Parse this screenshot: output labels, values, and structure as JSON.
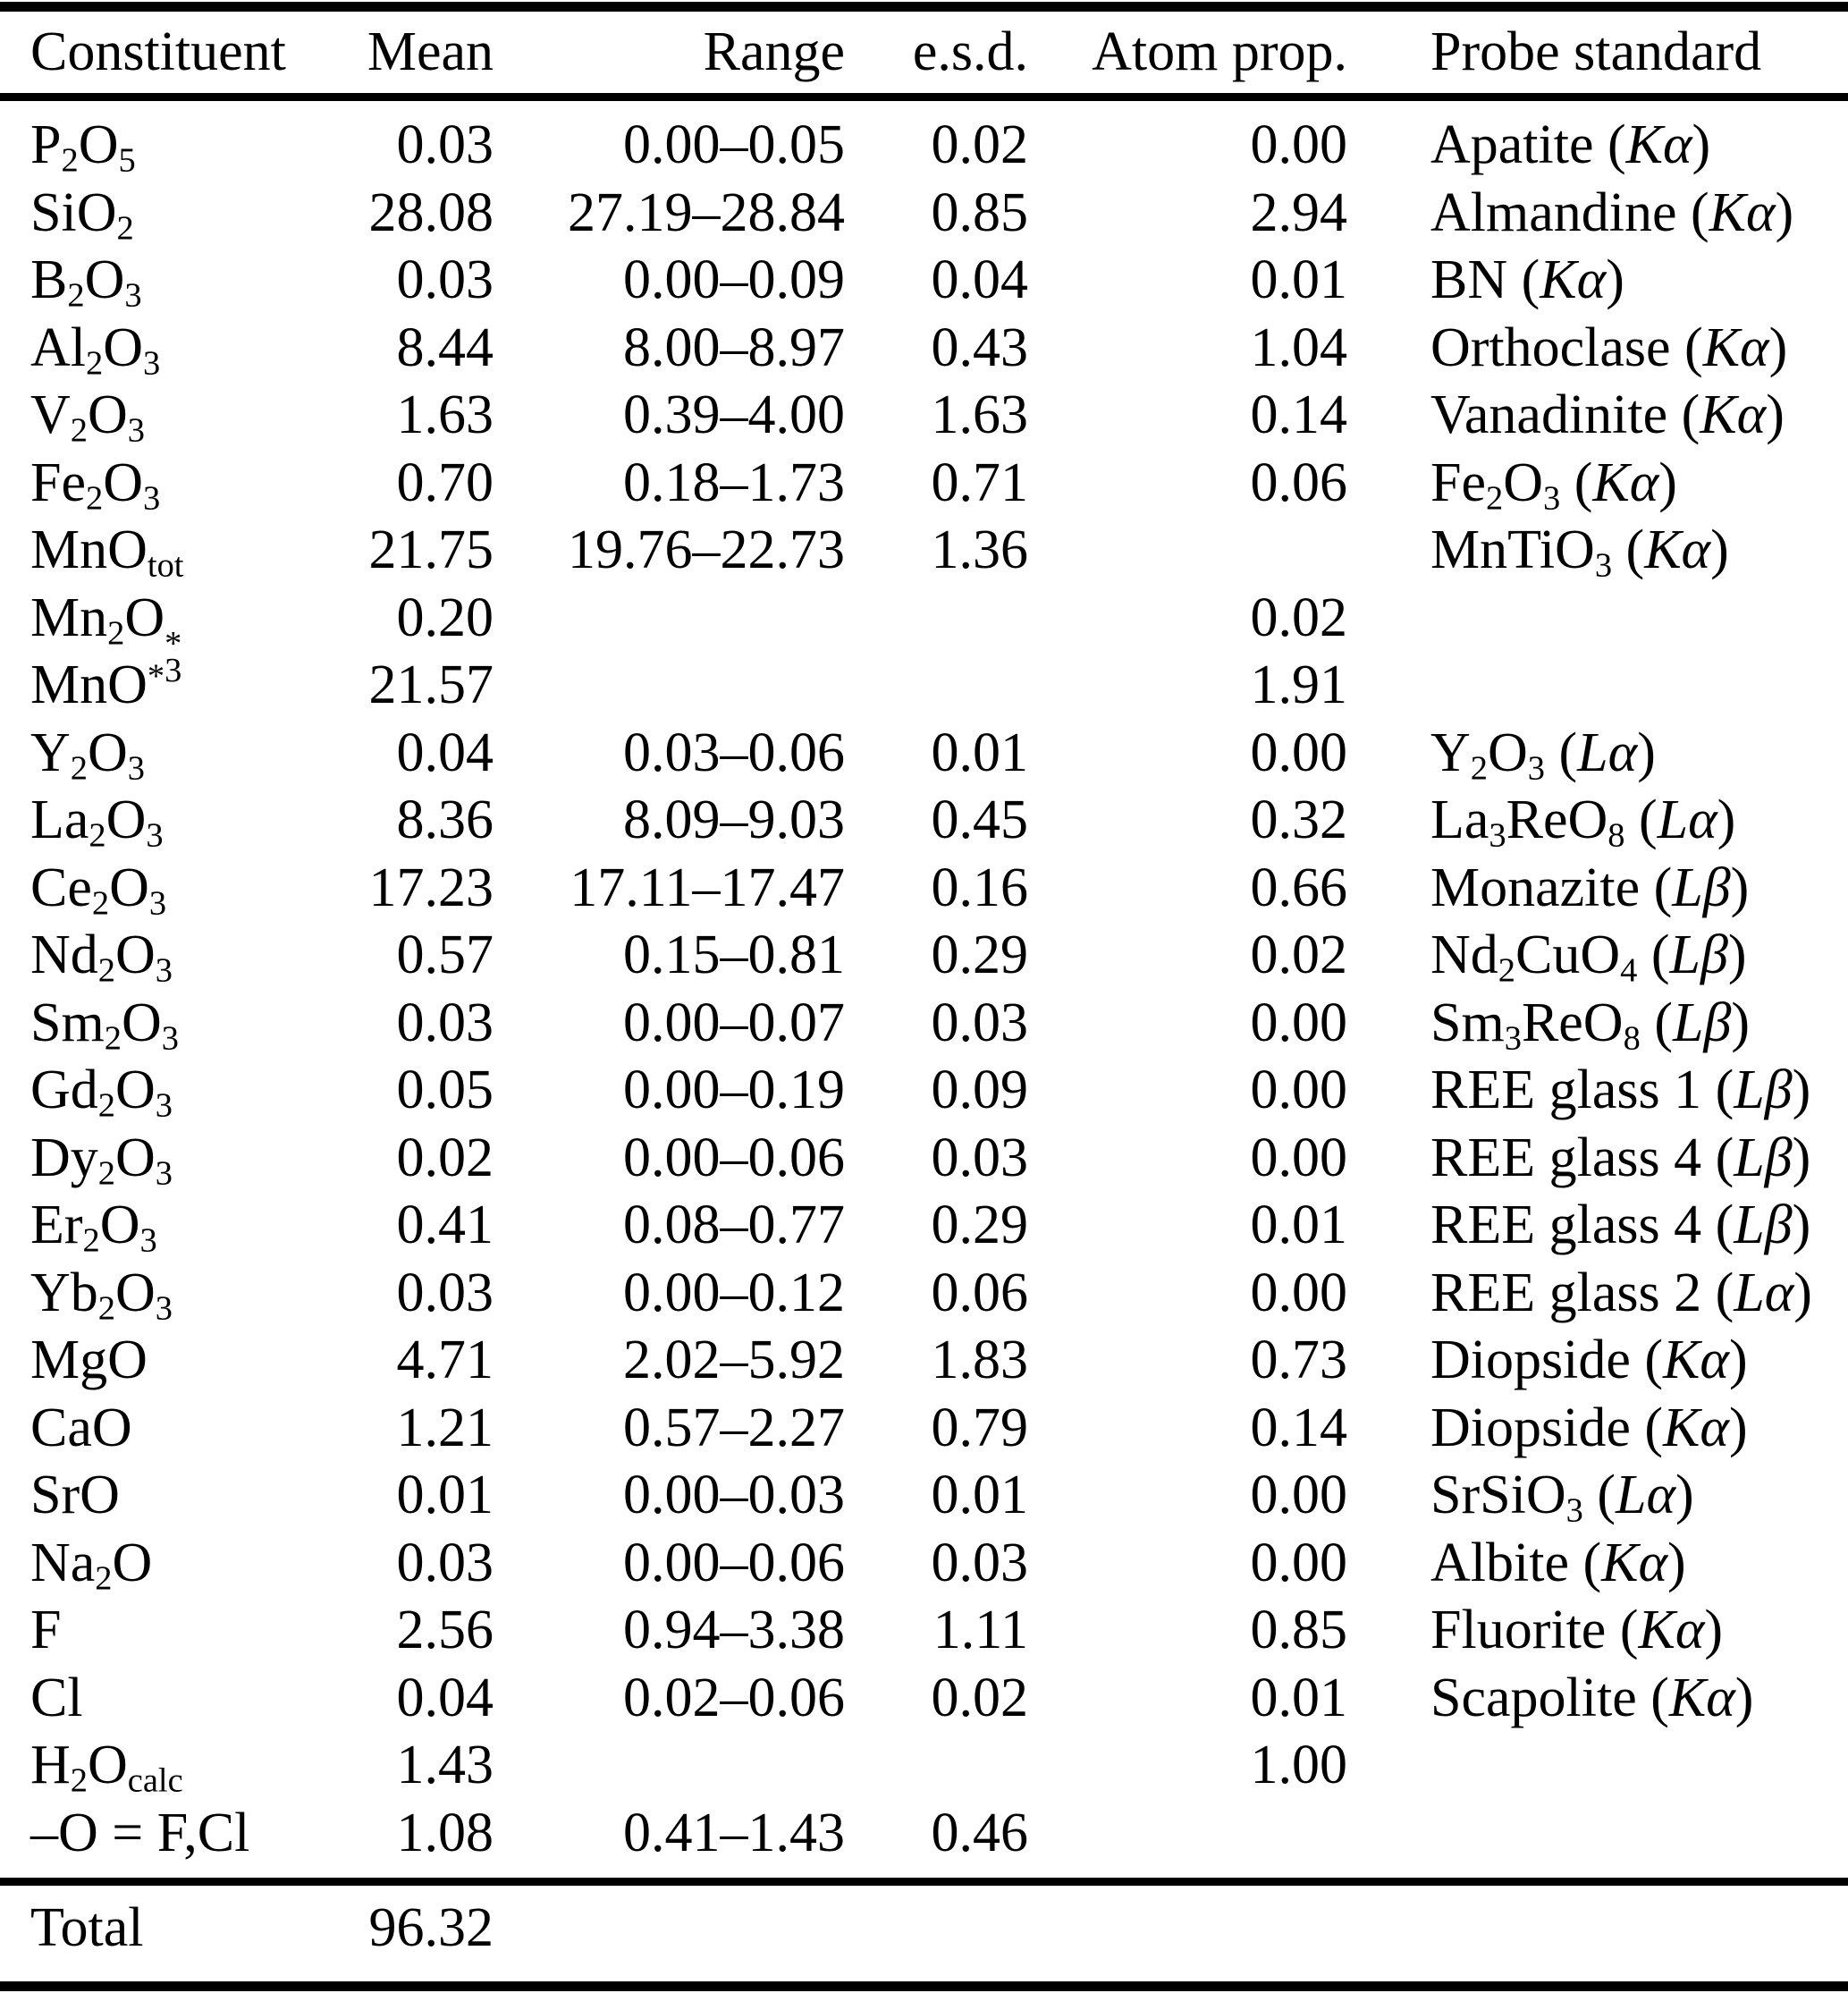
{
  "colors": {
    "background": "#ffffff",
    "text": "#000000",
    "rule": "#000000"
  },
  "table": {
    "columns": [
      "Constituent",
      "Mean",
      "Range",
      "e.s.d.",
      "Atom prop.",
      "Probe standard"
    ],
    "rows": [
      {
        "constituent": "P_{2}O_{5}",
        "mean": "0.03",
        "range": "0.00–0.05",
        "esd": "0.02",
        "atom_prop": "0.00",
        "probe_standard": "Apatite (~Kα~)"
      },
      {
        "constituent": "SiO_{2}",
        "mean": "28.08",
        "range": "27.19–28.84",
        "esd": "0.85",
        "atom_prop": "2.94",
        "probe_standard": "Almandine (~Kα~)"
      },
      {
        "constituent": "B_{2}O_{3}",
        "mean": "0.03",
        "range": "0.00–0.09",
        "esd": "0.04",
        "atom_prop": "0.01",
        "probe_standard": "BN (~Kα~)"
      },
      {
        "constituent": "Al_{2}O_{3}",
        "mean": "8.44",
        "range": "8.00–8.97",
        "esd": "0.43",
        "atom_prop": "1.04",
        "probe_standard": "Orthoclase (~Kα~)"
      },
      {
        "constituent": "V_{2}O_{3}",
        "mean": "1.63",
        "range": "0.39–4.00",
        "esd": "1.63",
        "atom_prop": "0.14",
        "probe_standard": "Vanadinite (~Kα~)"
      },
      {
        "constituent": "Fe_{2}O_{3}",
        "mean": "0.70",
        "range": "0.18–1.73",
        "esd": "0.71",
        "atom_prop": "0.06",
        "probe_standard": "Fe_{2}O_{3} (~Kα~)"
      },
      {
        "constituent": "MnO_{tot}",
        "mean": "21.75",
        "range": "19.76–22.73",
        "esd": "1.36",
        "atom_prop": "",
        "probe_standard": "MnTiO_{3} (~Kα~)"
      },
      {
        "constituent": "Mn_{2}O%{*|3}",
        "mean": "0.20",
        "range": "",
        "esd": "",
        "atom_prop": "0.02",
        "probe_standard": ""
      },
      {
        "constituent": "MnO^{*}",
        "mean": "21.57",
        "range": "",
        "esd": "",
        "atom_prop": "1.91",
        "probe_standard": ""
      },
      {
        "constituent": "Y_{2}O_{3}",
        "mean": "0.04",
        "range": "0.03–0.06",
        "esd": "0.01",
        "atom_prop": "0.00",
        "probe_standard": "Y_{2}O_{3} (~Lα~)"
      },
      {
        "constituent": "La_{2}O_{3}",
        "mean": "8.36",
        "range": "8.09–9.03",
        "esd": "0.45",
        "atom_prop": "0.32",
        "probe_standard": "La_{3}ReO_{8} (~Lα~)"
      },
      {
        "constituent": "Ce_{2}O_{3}",
        "mean": "17.23",
        "range": "17.11–17.47",
        "esd": "0.16",
        "atom_prop": "0.66",
        "probe_standard": "Monazite (~Lβ~)"
      },
      {
        "constituent": "Nd_{2}O_{3}",
        "mean": "0.57",
        "range": "0.15–0.81",
        "esd": "0.29",
        "atom_prop": "0.02",
        "probe_standard": "Nd_{2}CuO_{4} (~Lβ~)"
      },
      {
        "constituent": "Sm_{2}O_{3}",
        "mean": "0.03",
        "range": "0.00–0.07",
        "esd": "0.03",
        "atom_prop": "0.00",
        "probe_standard": "Sm_{3}ReO_{8} (~Lβ~)"
      },
      {
        "constituent": "Gd_{2}O_{3}",
        "mean": "0.05",
        "range": "0.00–0.19",
        "esd": "0.09",
        "atom_prop": "0.00",
        "probe_standard": "REE glass 1 (~Lβ~)"
      },
      {
        "constituent": "Dy_{2}O_{3}",
        "mean": "0.02",
        "range": "0.00–0.06",
        "esd": "0.03",
        "atom_prop": "0.00",
        "probe_standard": "REE glass 4 (~Lβ~)"
      },
      {
        "constituent": "Er_{2}O_{3}",
        "mean": "0.41",
        "range": "0.08–0.77",
        "esd": "0.29",
        "atom_prop": "0.01",
        "probe_standard": "REE glass 4 (~Lβ~)"
      },
      {
        "constituent": "Yb_{2}O_{3}",
        "mean": "0.03",
        "range": "0.00–0.12",
        "esd": "0.06",
        "atom_prop": "0.00",
        "probe_standard": "REE glass 2 (~Lα~)"
      },
      {
        "constituent": "MgO",
        "mean": "4.71",
        "range": "2.02–5.92",
        "esd": "1.83",
        "atom_prop": "0.73",
        "probe_standard": "Diopside (~Kα~)"
      },
      {
        "constituent": "CaO",
        "mean": "1.21",
        "range": "0.57–2.27",
        "esd": "0.79",
        "atom_prop": "0.14",
        "probe_standard": "Diopside (~Kα~)"
      },
      {
        "constituent": "SrO",
        "mean": "0.01",
        "range": "0.00–0.03",
        "esd": "0.01",
        "atom_prop": "0.00",
        "probe_standard": "SrSiO_{3} (~Lα~)"
      },
      {
        "constituent": "Na_{2}O",
        "mean": "0.03",
        "range": "0.00–0.06",
        "esd": "0.03",
        "atom_prop": "0.00",
        "probe_standard": "Albite (~Kα~)"
      },
      {
        "constituent": "F",
        "mean": "2.56",
        "range": "0.94–3.38",
        "esd": "1.11",
        "atom_prop": "0.85",
        "probe_standard": "Fluorite (~Kα~)"
      },
      {
        "constituent": "Cl",
        "mean": "0.04",
        "range": "0.02–0.06",
        "esd": "0.02",
        "atom_prop": "0.01",
        "probe_standard": "Scapolite (~Kα~)"
      },
      {
        "constituent": "H_{2}O_{calc}",
        "mean": "1.43",
        "range": "",
        "esd": "",
        "atom_prop": "1.00",
        "probe_standard": ""
      },
      {
        "constituent": "–O = F,Cl",
        "mean": "1.08",
        "range": "0.41–1.43",
        "esd": "0.46",
        "atom_prop": "",
        "probe_standard": ""
      }
    ],
    "total": {
      "label": "Total",
      "mean": "96.32"
    }
  }
}
